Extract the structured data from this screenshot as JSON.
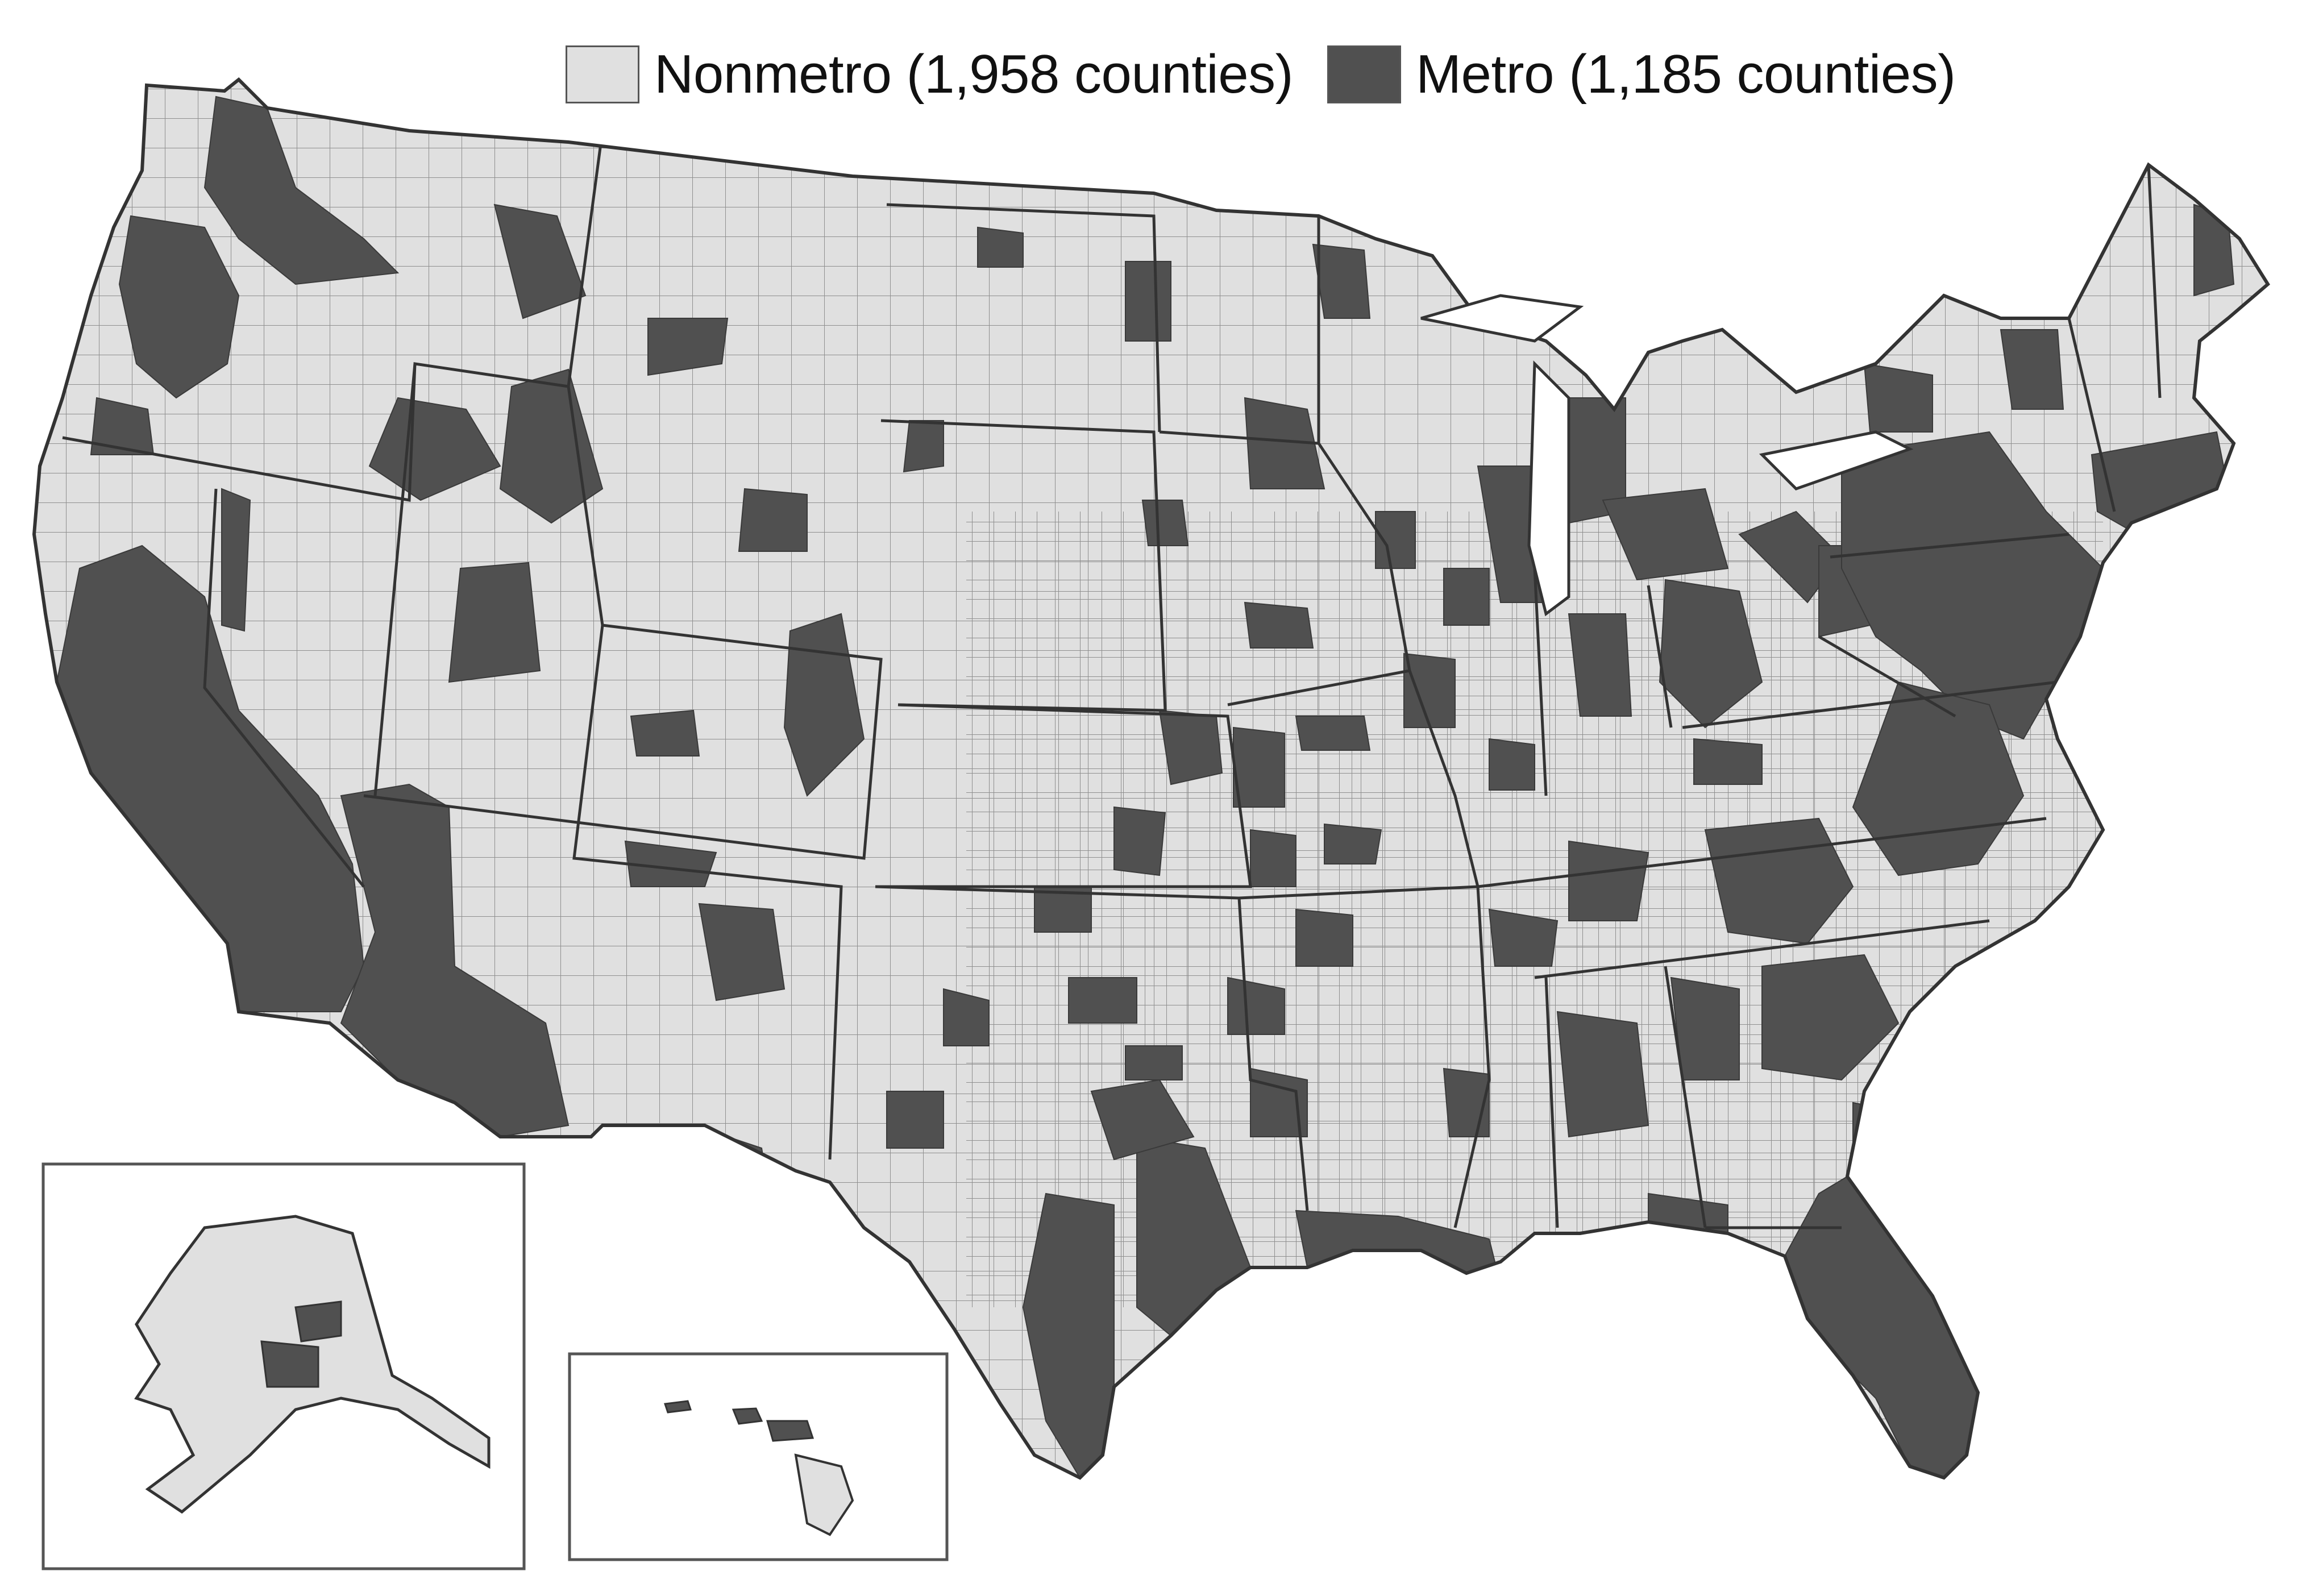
{
  "legend": {
    "items": [
      {
        "label": "Nonmetro (1,958 counties)",
        "color": "#e0e0e0"
      },
      {
        "label": "Metro (1,185 counties)",
        "color": "#505050"
      }
    ]
  },
  "colors": {
    "nonmetro": "#e0e0e0",
    "metro": "#505050",
    "state_border": "#333333",
    "county_border": "#8a8a8a",
    "inset_frame": "#555555"
  },
  "insets": [
    {
      "region": "Alaska"
    },
    {
      "region": "Hawaii"
    }
  ]
}
